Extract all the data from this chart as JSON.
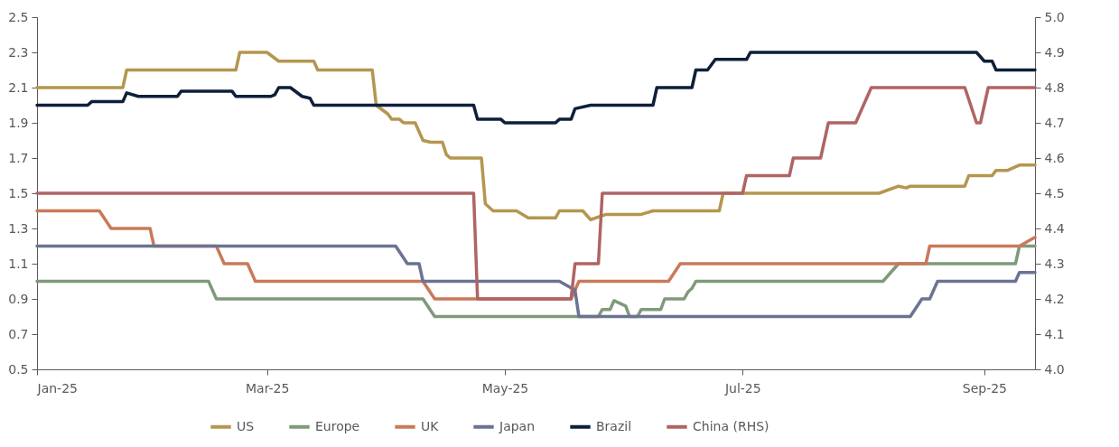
{
  "chart_data": {
    "type": "line",
    "legend": "bottom",
    "grid": false,
    "line_style": "solid",
    "xlim": [
      "2025-01-01",
      "2025-09-14"
    ],
    "xticks": [
      {
        "value": "2025-01-01",
        "label": "Jan-25"
      },
      {
        "value": "2025-03-01",
        "label": "Mar-25"
      },
      {
        "value": "2025-05-01",
        "label": "May-25"
      },
      {
        "value": "2025-07-01",
        "label": "Jul-25"
      },
      {
        "value": "2025-09-01",
        "label": "Sep-25"
      }
    ],
    "ylim": [
      0.5,
      2.5
    ],
    "yticks": [
      0.5,
      0.7,
      0.9,
      1.1,
      1.3,
      1.5,
      1.7,
      1.9,
      2.1,
      2.3,
      2.5
    ],
    "y2lim": [
      4.0,
      5.0
    ],
    "y2ticks": [
      {
        "value": 4,
        "label": "4.0"
      },
      4.1,
      4.2,
      4.3,
      4.4,
      4.5,
      4.6,
      4.7,
      4.8,
      4.9,
      {
        "value": 5,
        "label": "5.0"
      }
    ],
    "series": [
      {
        "name": "US",
        "color": "#b5964f",
        "x": [
          "2025-01-01",
          "2025-01-23",
          "2025-01-24",
          "2025-02-21",
          "2025-02-22",
          "2025-03-01",
          "2025-03-04",
          "2025-03-13",
          "2025-03-14",
          "2025-03-28",
          "2025-03-29",
          "2025-04-01",
          "2025-04-02",
          "2025-04-04",
          "2025-04-05",
          "2025-04-08",
          "2025-04-10",
          "2025-04-12",
          "2025-04-15",
          "2025-04-16",
          "2025-04-17",
          "2025-04-25",
          "2025-04-26",
          "2025-04-28",
          "2025-05-04",
          "2025-05-07",
          "2025-05-14",
          "2025-05-15",
          "2025-05-21",
          "2025-05-23",
          "2025-05-27",
          "2025-06-05",
          "2025-06-08",
          "2025-06-25",
          "2025-06-26",
          "2025-08-05",
          "2025-08-10",
          "2025-08-12",
          "2025-08-13",
          "2025-08-27",
          "2025-08-28",
          "2025-09-03",
          "2025-09-04",
          "2025-09-07",
          "2025-09-08",
          "2025-09-10",
          "2025-09-14"
        ],
        "values": [
          2.1,
          2.1,
          2.2,
          2.2,
          2.3,
          2.3,
          2.25,
          2.25,
          2.2,
          2.2,
          2.0,
          1.95,
          1.92,
          1.92,
          1.9,
          1.9,
          1.8,
          1.79,
          1.79,
          1.72,
          1.7,
          1.7,
          1.44,
          1.4,
          1.4,
          1.36,
          1.36,
          1.4,
          1.4,
          1.35,
          1.38,
          1.38,
          1.4,
          1.4,
          1.5,
          1.5,
          1.54,
          1.53,
          1.54,
          1.54,
          1.6,
          1.6,
          1.63,
          1.63,
          1.64,
          1.66,
          1.66
        ]
      },
      {
        "name": "Europe",
        "color": "#7f9a7a",
        "x": [
          "2025-01-01",
          "2025-02-14",
          "2025-02-16",
          "2025-04-10",
          "2025-04-13",
          "2025-05-25",
          "2025-05-26",
          "2025-05-28",
          "2025-05-29",
          "2025-06-01",
          "2025-06-02",
          "2025-06-04",
          "2025-06-05",
          "2025-06-10",
          "2025-06-11",
          "2025-06-16",
          "2025-06-17",
          "2025-06-18",
          "2025-06-19",
          "2025-08-06",
          "2025-08-10",
          "2025-09-09",
          "2025-09-10",
          "2025-09-14"
        ],
        "values": [
          1.0,
          1.0,
          0.9,
          0.9,
          0.8,
          0.8,
          0.84,
          0.84,
          0.89,
          0.86,
          0.8,
          0.8,
          0.84,
          0.84,
          0.9,
          0.9,
          0.94,
          0.96,
          1.0,
          1.0,
          1.1,
          1.1,
          1.2,
          1.2
        ]
      },
      {
        "name": "UK",
        "color": "#c87a5a",
        "x": [
          "2025-01-01",
          "2025-01-17",
          "2025-01-20",
          "2025-01-30",
          "2025-01-31",
          "2025-02-16",
          "2025-02-18",
          "2025-02-24",
          "2025-02-26",
          "2025-04-10",
          "2025-04-13",
          "2025-05-18",
          "2025-05-20",
          "2025-06-12",
          "2025-06-15",
          "2025-08-17",
          "2025-08-18",
          "2025-09-10",
          "2025-09-14"
        ],
        "values": [
          1.4,
          1.4,
          1.3,
          1.3,
          1.2,
          1.2,
          1.1,
          1.1,
          1.0,
          1.0,
          0.9,
          0.9,
          1.0,
          1.0,
          1.1,
          1.1,
          1.2,
          1.2,
          1.25
        ]
      },
      {
        "name": "Japan",
        "color": "#6b7394",
        "x": [
          "2025-01-01",
          "2025-04-03",
          "2025-04-06",
          "2025-04-09",
          "2025-04-10",
          "2025-05-15",
          "2025-05-19",
          "2025-05-20",
          "2025-08-13",
          "2025-08-16",
          "2025-08-18",
          "2025-08-20",
          "2025-09-09",
          "2025-09-10",
          "2025-09-14"
        ],
        "values": [
          1.2,
          1.2,
          1.1,
          1.1,
          1.0,
          1.0,
          0.95,
          0.8,
          0.8,
          0.9,
          0.9,
          1.0,
          1.0,
          1.05,
          1.05
        ]
      },
      {
        "name": "Brazil",
        "color": "#0d1f3a",
        "x": [
          "2025-01-01",
          "2025-01-14",
          "2025-01-15",
          "2025-01-23",
          "2025-01-24",
          "2025-01-27",
          "2025-02-06",
          "2025-02-07",
          "2025-02-20",
          "2025-02-21",
          "2025-03-02",
          "2025-03-03",
          "2025-03-04",
          "2025-03-07",
          "2025-03-10",
          "2025-03-12",
          "2025-03-13",
          "2025-04-23",
          "2025-04-24",
          "2025-04-30",
          "2025-05-01",
          "2025-05-14",
          "2025-05-15",
          "2025-05-18",
          "2025-05-19",
          "2025-05-23",
          "2025-06-08",
          "2025-06-09",
          "2025-06-18",
          "2025-06-19",
          "2025-06-22",
          "2025-06-24",
          "2025-07-02",
          "2025-07-03",
          "2025-08-30",
          "2025-09-01",
          "2025-09-03",
          "2025-09-04",
          "2025-09-14"
        ],
        "values": [
          2.0,
          2.0,
          2.02,
          2.02,
          2.07,
          2.05,
          2.05,
          2.08,
          2.08,
          2.05,
          2.05,
          2.06,
          2.1,
          2.1,
          2.05,
          2.04,
          2.0,
          2.0,
          1.92,
          1.92,
          1.9,
          1.9,
          1.92,
          1.92,
          1.98,
          2.0,
          2.0,
          2.1,
          2.1,
          2.2,
          2.2,
          2.26,
          2.26,
          2.3,
          2.3,
          2.25,
          2.25,
          2.2,
          2.2
        ]
      },
      {
        "name": "China (RHS)",
        "color": "#b06464",
        "axis": "y2",
        "x": [
          "2025-01-01",
          "2025-04-23",
          "2025-04-24",
          "2025-05-18",
          "2025-05-19",
          "2025-05-25",
          "2025-05-26",
          "2025-07-01",
          "2025-07-02",
          "2025-07-13",
          "2025-07-14",
          "2025-07-21",
          "2025-07-23",
          "2025-07-30",
          "2025-08-03",
          "2025-08-27",
          "2025-08-30",
          "2025-08-31",
          "2025-09-02",
          "2025-09-14"
        ],
        "values": [
          4.5,
          4.5,
          4.2,
          4.2,
          4.3,
          4.3,
          4.5,
          4.5,
          4.55,
          4.55,
          4.6,
          4.6,
          4.7,
          4.7,
          4.8,
          4.8,
          4.7,
          4.7,
          4.8,
          4.8
        ]
      }
    ]
  }
}
